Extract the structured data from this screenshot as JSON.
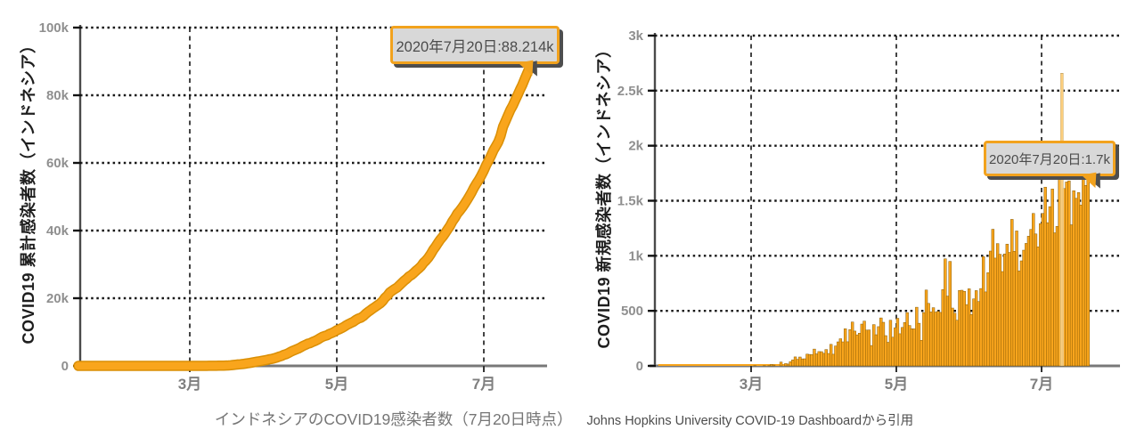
{
  "caption": {
    "title": "インドネシアのCOVID19感染者数（7月20日時点）",
    "source": "Johns Hopkins University COVID-19 Dashboardから引用"
  },
  "colors": {
    "series_orange": "#F9A51C",
    "series_orange_edge": "#DA8F05",
    "bar_outline": "#7A5200",
    "tooltip_border": "#F2A21D",
    "tooltip_bg": "#D8D8D8",
    "tooltip_text": "#4C4C4C",
    "tooltip_shadow": "#4E4E4E",
    "grid_color": "#161616",
    "x_axis_color": "#787878",
    "y_axis_color": "#4A4A4A",
    "tick_label_color": "#8F8F8F",
    "month_label_color": "#7F7F7F",
    "axis_title_color": "#1E1E1E",
    "highlight_stripe": "rgba(255,241,205,0.55)"
  },
  "chart_data": [
    {
      "type": "line",
      "ylabel": "COVID19 累計感染者数（インドネシア）",
      "xlabel": "",
      "title": "",
      "ylim": [
        0,
        100000
      ],
      "y_ticks": [
        "0",
        "20k",
        "40k",
        "60k",
        "80k",
        "100k"
      ],
      "x_ticks": [
        "3月",
        "5月",
        "7月"
      ],
      "grid": "horizontal-dotted, vertical-dashed",
      "legend_position": "none",
      "tooltip": {
        "label": "2020年7月20日:88.214k",
        "date": "2020-07-20",
        "value": 88214
      },
      "series_definition": "cumulative running total of chart_data[1].values (daily new cases starting 2020-01-22)",
      "anchor_points": [
        [
          "2020-03-01",
          1
        ],
        [
          "2020-03-31",
          1528
        ],
        [
          "2020-04-30",
          10118
        ],
        [
          "2020-05-31",
          26473
        ],
        [
          "2020-06-30",
          56385
        ],
        [
          "2020-07-20",
          88214
        ]
      ]
    },
    {
      "type": "bar",
      "ylabel": "COVID19 新規感染者数（インドネシア）",
      "xlabel": "",
      "title": "",
      "ylim": [
        0,
        3000
      ],
      "y_ticks": [
        "0",
        "500",
        "1k",
        "1.5k",
        "2k",
        "2.5k",
        "3k"
      ],
      "x_ticks": [
        "3月",
        "5月",
        "7月"
      ],
      "grid": "horizontal-dotted, vertical-dashed",
      "legend_position": "none",
      "tooltip": {
        "label": "2020年7月20日:1.7k",
        "date": "2020-07-20",
        "value": 1693
      },
      "start_date": "2020-01-22",
      "end_date": "2020-07-20",
      "values": [
        0,
        0,
        0,
        0,
        0,
        0,
        0,
        0,
        0,
        0,
        0,
        0,
        0,
        0,
        0,
        0,
        0,
        0,
        0,
        0,
        0,
        0,
        0,
        0,
        0,
        0,
        0,
        0,
        0,
        0,
        0,
        0,
        0,
        0,
        0,
        0,
        0,
        0,
        0,
        0,
        2,
        0,
        0,
        0,
        2,
        0,
        2,
        13,
        8,
        0,
        0,
        35,
        0,
        21,
        17,
        38,
        55,
        82,
        60,
        81,
        64,
        65,
        107,
        104,
        103,
        153,
        109,
        130,
        129,
        114,
        149,
        113,
        196,
        106,
        181,
        218,
        247,
        218,
        337,
        219,
        330,
        399,
        316,
        282,
        297,
        380,
        407,
        325,
        327,
        185,
        375,
        283,
        357,
        436,
        396,
        275,
        214,
        415,
        260,
        347,
        433,
        292,
        349,
        395,
        484,
        367,
        338,
        336,
        533,
        387,
        233,
        484,
        689,
        568,
        490,
        529,
        489,
        496,
        486,
        693,
        973,
        634,
        949,
        526,
        479,
        415,
        686,
        687,
        678,
        557,
        700,
        467,
        609,
        684,
        585,
        703,
        993,
        672,
        847,
        1043,
        1241,
        979,
        1111,
        1014,
        857,
        1017,
        1106,
        1031,
        1331,
        1041,
        1226,
        862,
        954,
        1051,
        1113,
        1178,
        1240,
        1385,
        1198,
        1082,
        1293,
        1385,
        1624,
        1301,
        1447,
        1607,
        1209,
        1268,
        1853,
        2657,
        1611,
        1671,
        1681,
        1282,
        1591,
        1522,
        1574,
        1462,
        1752,
        1639,
        1693
      ]
    }
  ]
}
